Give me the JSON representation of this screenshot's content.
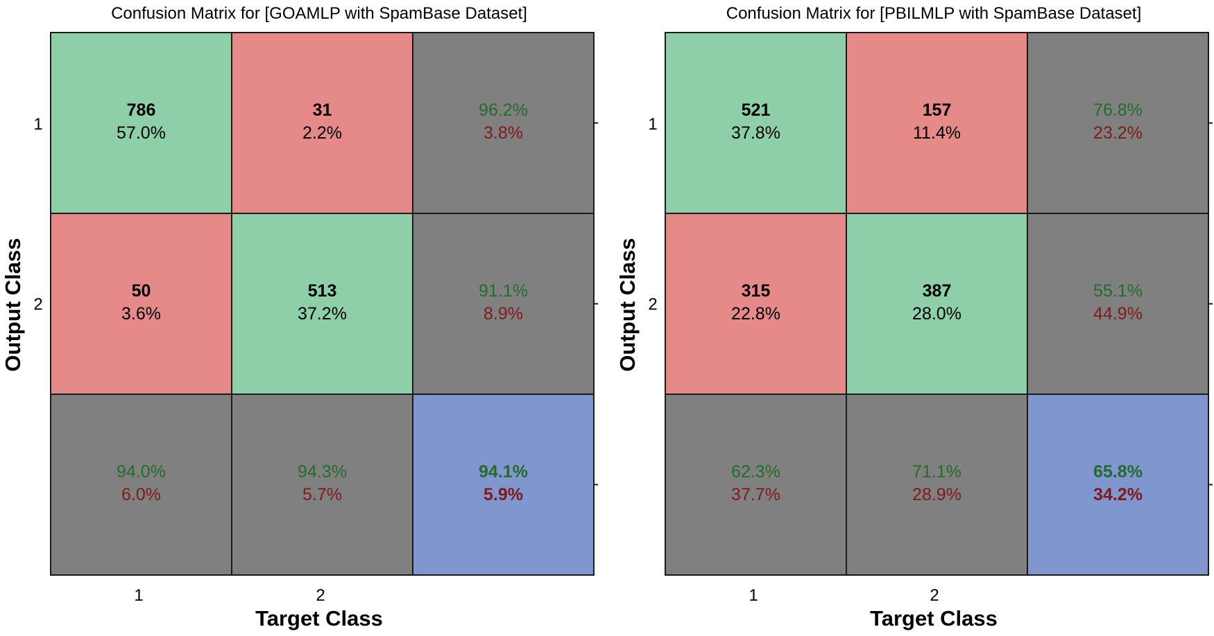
{
  "chart_data": [
    {
      "type": "heatmap",
      "title": "Confusion Matrix for [GOAMLP with SpamBase Dataset]",
      "xlabel": "Target Class",
      "ylabel": "Output Class",
      "x_tick_labels": [
        "1",
        "2"
      ],
      "y_tick_labels": [
        "1",
        "2"
      ],
      "counts": [
        [
          786,
          31
        ],
        [
          50,
          513
        ]
      ],
      "percent_of_total": [
        [
          "57.0%",
          "2.2%"
        ],
        [
          "3.6%",
          "37.2%"
        ]
      ],
      "row_summary": [
        {
          "correct": "96.2%",
          "error": "3.8%"
        },
        {
          "correct": "91.1%",
          "error": "8.9%"
        }
      ],
      "col_summary": [
        {
          "correct": "94.0%",
          "error": "6.0%"
        },
        {
          "correct": "94.3%",
          "error": "5.7%"
        }
      ],
      "overall": {
        "correct": "94.1%",
        "error": "5.9%"
      }
    },
    {
      "type": "heatmap",
      "title": "Confusion Matrix for [PBILMLP with SpamBase Dataset]",
      "xlabel": "Target Class",
      "ylabel": "Output Class",
      "x_tick_labels": [
        "1",
        "2"
      ],
      "y_tick_labels": [
        "1",
        "2"
      ],
      "counts": [
        [
          521,
          157
        ],
        [
          315,
          387
        ]
      ],
      "percent_of_total": [
        [
          "37.8%",
          "11.4%"
        ],
        [
          "22.8%",
          "28.0%"
        ]
      ],
      "row_summary": [
        {
          "correct": "76.8%",
          "error": "23.2%"
        },
        {
          "correct": "55.1%",
          "error": "44.9%"
        }
      ],
      "col_summary": [
        {
          "correct": "62.3%",
          "error": "37.7%"
        },
        {
          "correct": "71.1%",
          "error": "28.9%"
        }
      ],
      "overall": {
        "correct": "65.8%",
        "error": "34.2%"
      }
    }
  ],
  "colors": {
    "correct_cell": "#8ecfaa",
    "error_cell": "#e58a89",
    "summary_cell": "#808080",
    "overall_cell": "#7f96cf",
    "correct_text": "#246b2c",
    "error_text": "#801a1a",
    "grid_line": "#1a1a1a",
    "text": "#000000"
  }
}
